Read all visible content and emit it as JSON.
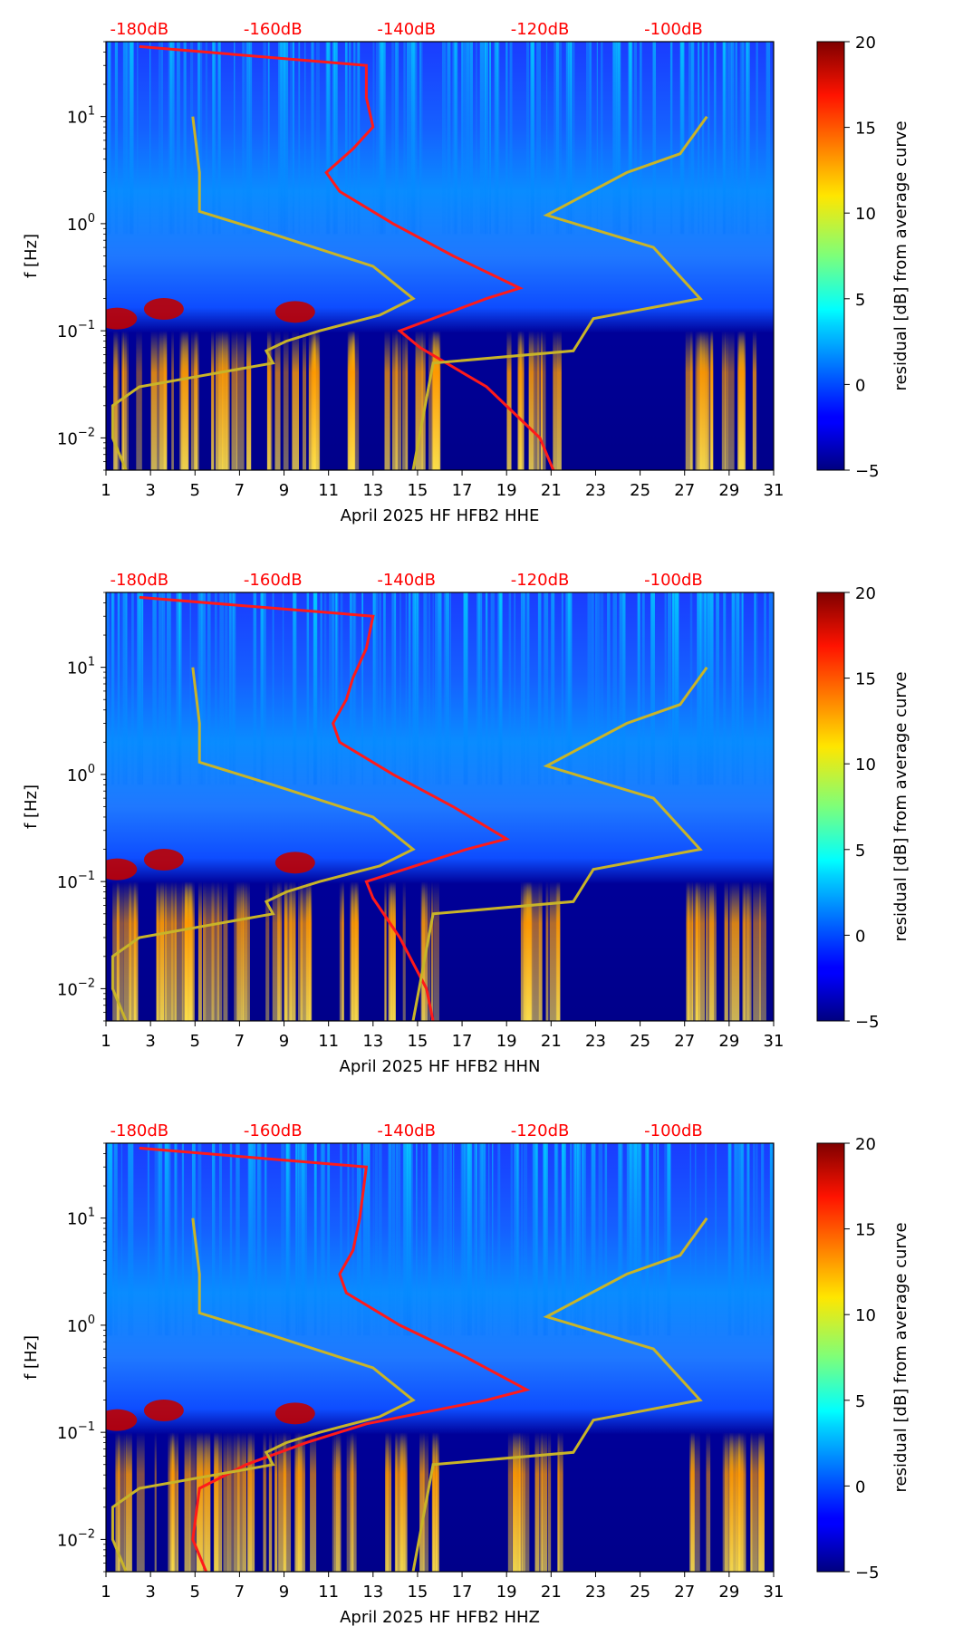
{
  "figure": {
    "colorbar_label": "residual [dB] from average curve",
    "colorbar_ticks": [
      "20",
      "15",
      "10",
      "5",
      "0",
      "−5"
    ],
    "y_label": "f [Hz]",
    "db_ticks": [
      "-180dB",
      "-160dB",
      "-140dB",
      "-120dB",
      "-100dB"
    ],
    "x_ticks": [
      "1",
      "3",
      "5",
      "7",
      "9",
      "11",
      "13",
      "15",
      "17",
      "19",
      "21",
      "23",
      "25",
      "27",
      "29",
      "31"
    ],
    "colors": {
      "mean_psd_curve": "#ff1a1a",
      "noise_model_curve": "#c8b428",
      "db_axis_text": "#ff0000"
    }
  },
  "chart_data": [
    {
      "type": "heatmap",
      "title": "",
      "xlabel": "April 2025 HF HFB2  HHE",
      "ylabel": "f [Hz]",
      "x_range": [
        1,
        31
      ],
      "y_range_hz": [
        0.005,
        50
      ],
      "y_scale": "log",
      "y_ticks": [
        {
          "value": 10,
          "base": "10",
          "exp": "1"
        },
        {
          "value": 1,
          "base": "10",
          "exp": "0"
        },
        {
          "value": 0.1,
          "base": "10",
          "exp": "−1"
        },
        {
          "value": 0.01,
          "base": "10",
          "exp": "−2"
        }
      ],
      "colorbar": {
        "min": -5,
        "max": 20,
        "label": "residual [dB] from average curve"
      },
      "top_axis": {
        "label_unit": "dB",
        "ticks": [
          -180,
          -160,
          -140,
          -120,
          -100
        ],
        "range": [
          -185,
          -85
        ]
      },
      "series": [
        {
          "name": "average PSD (red)",
          "freq_hz": [
            0.005,
            0.01,
            0.03,
            0.07,
            0.1,
            0.2,
            0.25,
            0.5,
            1,
            2,
            3,
            5,
            8,
            15,
            30,
            45
          ],
          "level_db": [
            -118,
            -120,
            -128,
            -138,
            -141,
            -128,
            -123,
            -133,
            -142,
            -150,
            -152,
            -148,
            -145,
            -146,
            -146,
            -180
          ]
        },
        {
          "name": "noise model (yellow)",
          "freq_hz": [
            0.005,
            0.01,
            0.02,
            0.03,
            0.05,
            0.065,
            0.08,
            0.1,
            0.14,
            0.2,
            0.4,
            0.8,
            1.3,
            3,
            10
          ],
          "level_db": [
            -182,
            -184,
            -184,
            -180,
            -160,
            -161,
            -158,
            -153,
            -144,
            -139,
            -145,
            -160,
            -171,
            -171,
            -172
          ]
        },
        {
          "name": "noise model high (yellow)",
          "freq_hz": [
            0.005,
            0.05,
            0.065,
            0.13,
            0.2,
            0.6,
            1.2,
            3,
            4.5,
            10
          ],
          "level_db": [
            -139,
            -136,
            -115,
            -112,
            -96,
            -103,
            -119,
            -107,
            -99,
            -95
          ]
        }
      ]
    },
    {
      "type": "heatmap",
      "title": "",
      "xlabel": "April 2025 HF HFB2  HHN",
      "ylabel": "f [Hz]",
      "x_range": [
        1,
        31
      ],
      "y_range_hz": [
        0.005,
        50
      ],
      "y_scale": "log",
      "y_ticks": [
        {
          "value": 10,
          "base": "10",
          "exp": "1"
        },
        {
          "value": 1,
          "base": "10",
          "exp": "0"
        },
        {
          "value": 0.1,
          "base": "10",
          "exp": "−1"
        },
        {
          "value": 0.01,
          "base": "10",
          "exp": "−2"
        }
      ],
      "colorbar": {
        "min": -5,
        "max": 20,
        "label": "residual [dB] from average curve"
      },
      "top_axis": {
        "label_unit": "dB",
        "ticks": [
          -180,
          -160,
          -140,
          -120,
          -100
        ],
        "range": [
          -185,
          -85
        ]
      },
      "series": [
        {
          "name": "average PSD (red)",
          "freq_hz": [
            0.005,
            0.01,
            0.03,
            0.07,
            0.1,
            0.2,
            0.25,
            0.5,
            1,
            2,
            3,
            5,
            8,
            15,
            30,
            45
          ],
          "level_db": [
            -136,
            -137,
            -141,
            -145,
            -146,
            -131,
            -125,
            -133,
            -142,
            -150,
            -151,
            -149,
            -148,
            -146,
            -145,
            -180
          ]
        },
        {
          "name": "noise model (yellow)",
          "freq_hz": [
            0.005,
            0.01,
            0.02,
            0.03,
            0.05,
            0.065,
            0.08,
            0.1,
            0.14,
            0.2,
            0.4,
            0.8,
            1.3,
            3,
            10
          ],
          "level_db": [
            -182,
            -184,
            -184,
            -180,
            -160,
            -161,
            -158,
            -153,
            -144,
            -139,
            -145,
            -160,
            -171,
            -171,
            -172
          ]
        },
        {
          "name": "noise model high (yellow)",
          "freq_hz": [
            0.005,
            0.05,
            0.065,
            0.13,
            0.2,
            0.6,
            1.2,
            3,
            4.5,
            10
          ],
          "level_db": [
            -139,
            -136,
            -115,
            -112,
            -96,
            -103,
            -119,
            -107,
            -99,
            -95
          ]
        }
      ]
    },
    {
      "type": "heatmap",
      "title": "",
      "xlabel": "April 2025 HF HFB2  HHZ",
      "ylabel": "f [Hz]",
      "x_range": [
        1,
        31
      ],
      "y_range_hz": [
        0.005,
        50
      ],
      "y_scale": "log",
      "y_ticks": [
        {
          "value": 10,
          "base": "10",
          "exp": "1"
        },
        {
          "value": 1,
          "base": "10",
          "exp": "0"
        },
        {
          "value": 0.1,
          "base": "10",
          "exp": "−1"
        },
        {
          "value": 0.01,
          "base": "10",
          "exp": "−2"
        }
      ],
      "colorbar": {
        "min": -5,
        "max": 20,
        "label": "residual [dB] from average curve"
      },
      "top_axis": {
        "label_unit": "dB",
        "ticks": [
          -180,
          -160,
          -140,
          -120,
          -100
        ],
        "range": [
          -185,
          -85
        ]
      },
      "series": [
        {
          "name": "average PSD (red)",
          "freq_hz": [
            0.005,
            0.01,
            0.03,
            0.05,
            0.08,
            0.12,
            0.2,
            0.25,
            0.5,
            1,
            2,
            3,
            5,
            10,
            30,
            45
          ],
          "level_db": [
            -170,
            -172,
            -171,
            -164,
            -155,
            -146,
            -128,
            -122,
            -131,
            -141,
            -149,
            -150,
            -148,
            -147,
            -146,
            -180
          ]
        },
        {
          "name": "noise model (yellow)",
          "freq_hz": [
            0.005,
            0.01,
            0.02,
            0.03,
            0.05,
            0.065,
            0.08,
            0.1,
            0.14,
            0.2,
            0.4,
            0.8,
            1.3,
            3,
            10
          ],
          "level_db": [
            -182,
            -184,
            -184,
            -180,
            -160,
            -161,
            -158,
            -153,
            -144,
            -139,
            -145,
            -160,
            -171,
            -171,
            -172
          ]
        },
        {
          "name": "noise model high (yellow)",
          "freq_hz": [
            0.005,
            0.05,
            0.065,
            0.13,
            0.2,
            0.6,
            1.2,
            3,
            4.5,
            10
          ],
          "level_db": [
            -139,
            -136,
            -115,
            -112,
            -96,
            -103,
            -119,
            -107,
            -99,
            -95
          ]
        }
      ]
    }
  ]
}
